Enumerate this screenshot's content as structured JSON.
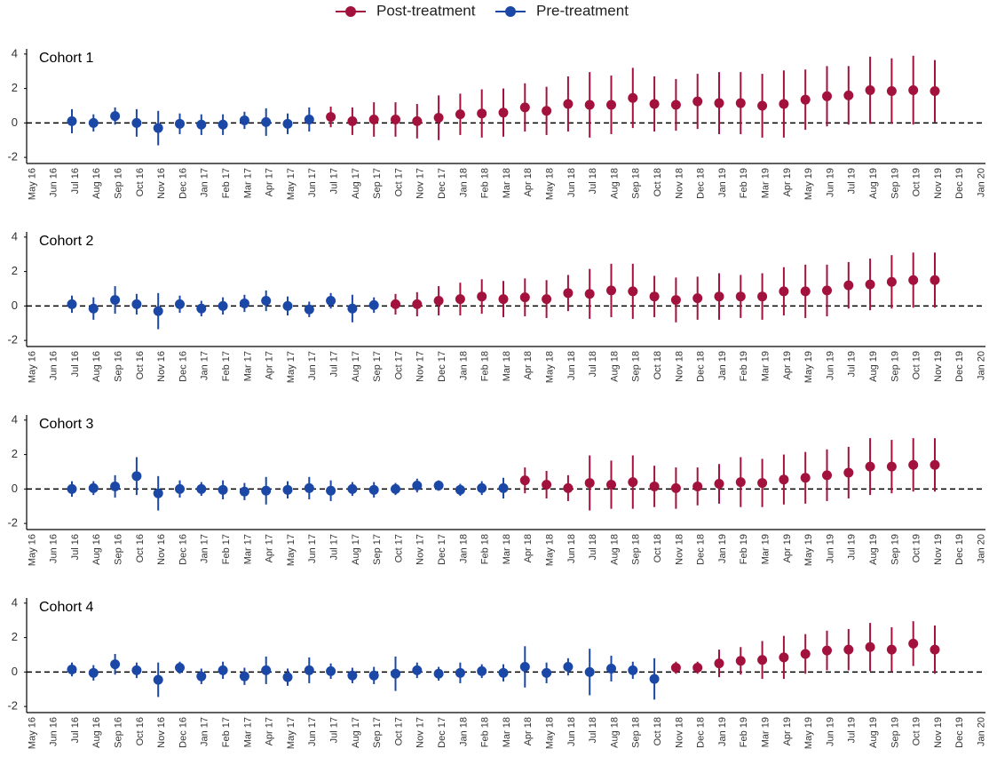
{
  "legend": [
    {
      "name": "Post-treatment",
      "color": "#a3123c"
    },
    {
      "name": "Pre-treatment",
      "color": "#1b48a6"
    }
  ],
  "chart_data": [
    {
      "type": "errorbar",
      "title": "Cohort 1",
      "categories": [
        "May 16",
        "Jun 16",
        "Jul 16",
        "Aug 16",
        "Sep 16",
        "Oct 16",
        "Nov 16",
        "Dec 16",
        "Jan 17",
        "Feb 17",
        "Mar 17",
        "Apr 17",
        "May 17",
        "Jun 17",
        "Jul 17",
        "Aug 17",
        "Sep 17",
        "Oct 17",
        "Nov 17",
        "Dec 17",
        "Jan 18",
        "Feb 18",
        "Mar 18",
        "Apr 18",
        "May 18",
        "Jun 18",
        "Jul 18",
        "Aug 18",
        "Sep 18",
        "Oct 18",
        "Nov 18",
        "Dec 18",
        "Jan 19",
        "Feb 19",
        "Mar 19",
        "Apr 19",
        "May 19",
        "Jun 19",
        "Jul 19",
        "Aug 19",
        "Sep 19",
        "Oct 19",
        "Nov 19",
        "Dec 19",
        "Jan 20"
      ],
      "ylim": [
        -2.2,
        4.3
      ],
      "yticks": [
        -2,
        0,
        2,
        4
      ],
      "reference_line": 0,
      "series": [
        {
          "values": [
            null,
            null,
            null,
            null,
            null,
            null,
            null,
            null,
            null,
            null,
            null,
            null,
            null,
            null,
            0.35,
            0.1,
            0.2,
            0.2,
            0.1,
            0.3,
            0.5,
            0.55,
            0.6,
            0.9,
            0.7,
            1.1,
            1.05,
            1.05,
            1.45,
            1.1,
            1.05,
            1.25,
            1.15,
            1.15,
            1.0,
            1.1,
            1.35,
            1.55,
            1.6,
            1.9,
            1.85,
            1.9,
            1.85,
            null,
            null
          ],
          "errors": [
            null,
            null,
            null,
            null,
            null,
            null,
            null,
            null,
            null,
            null,
            null,
            null,
            null,
            null,
            0.6,
            0.8,
            1.0,
            1.0,
            1.0,
            1.3,
            1.2,
            1.4,
            1.4,
            1.4,
            1.4,
            1.6,
            1.9,
            1.7,
            1.75,
            1.6,
            1.5,
            1.6,
            1.8,
            1.8,
            1.85,
            1.95,
            1.75,
            1.75,
            1.7,
            1.95,
            1.9,
            2.0,
            1.8,
            null,
            null
          ]
        },
        {
          "values": [
            null,
            null,
            0.1,
            0,
            0.4,
            0,
            -0.3,
            -0.05,
            -0.1,
            -0.1,
            0.15,
            0.05,
            -0.05,
            0.2,
            null,
            null,
            null,
            null,
            null,
            null,
            null,
            null,
            null,
            null,
            null,
            null,
            null,
            null,
            null,
            null,
            null,
            null,
            null,
            null,
            null,
            null,
            null,
            null,
            null,
            null,
            null,
            null,
            null,
            null,
            null
          ],
          "errors": [
            null,
            null,
            0.7,
            0.5,
            0.5,
            0.8,
            1.0,
            0.6,
            0.6,
            0.6,
            0.5,
            0.8,
            0.6,
            0.7,
            null,
            null,
            null,
            null,
            null,
            null,
            null,
            null,
            null,
            null,
            null,
            null,
            null,
            null,
            null,
            null,
            null,
            null,
            null,
            null,
            null,
            null,
            null,
            null,
            null,
            null,
            null,
            null,
            null,
            null,
            null
          ]
        }
      ]
    },
    {
      "type": "errorbar",
      "title": "Cohort 2",
      "categories": [
        "May 16",
        "Jun 16",
        "Jul 16",
        "Aug 16",
        "Sep 16",
        "Oct 16",
        "Nov 16",
        "Dec 16",
        "Jan 17",
        "Feb 17",
        "Mar 17",
        "Apr 17",
        "May 17",
        "Jun 17",
        "Jul 17",
        "Aug 17",
        "Sep 17",
        "Oct 17",
        "Nov 17",
        "Dec 17",
        "Jan 18",
        "Feb 18",
        "Mar 18",
        "Apr 18",
        "May 18",
        "Jun 18",
        "Jul 18",
        "Aug 18",
        "Sep 18",
        "Oct 18",
        "Nov 18",
        "Dec 18",
        "Jan 19",
        "Feb 19",
        "Mar 19",
        "Apr 19",
        "May 19",
        "Jun 19",
        "Jul 19",
        "Aug 19",
        "Sep 19",
        "Oct 19",
        "Nov 19",
        "Dec 19",
        "Jan 20"
      ],
      "ylim": [
        -2.2,
        4.3
      ],
      "yticks": [
        -2,
        0,
        2,
        4
      ],
      "reference_line": 0,
      "series": [
        {
          "values": [
            null,
            null,
            null,
            null,
            null,
            null,
            null,
            null,
            null,
            null,
            null,
            null,
            null,
            null,
            null,
            null,
            null,
            0.1,
            0.1,
            0.3,
            0.4,
            0.55,
            0.4,
            0.5,
            0.4,
            0.75,
            0.7,
            0.9,
            0.85,
            0.55,
            0.35,
            0.45,
            0.55,
            0.55,
            0.55,
            0.85,
            0.85,
            0.9,
            1.2,
            1.25,
            1.4,
            1.5,
            1.5,
            null,
            null
          ],
          "errors": [
            null,
            null,
            null,
            null,
            null,
            null,
            null,
            null,
            null,
            null,
            null,
            null,
            null,
            null,
            null,
            null,
            null,
            0.6,
            0.7,
            0.85,
            0.95,
            1.0,
            1.05,
            1.1,
            1.1,
            1.05,
            1.45,
            1.55,
            1.6,
            1.2,
            1.3,
            1.25,
            1.35,
            1.25,
            1.35,
            1.4,
            1.55,
            1.5,
            1.35,
            1.5,
            1.55,
            1.6,
            1.6,
            null,
            null
          ]
        },
        {
          "values": [
            null,
            null,
            0.1,
            -0.15,
            0.35,
            0.1,
            -0.3,
            0.1,
            -0.15,
            0,
            0.15,
            0.3,
            0,
            -0.2,
            0.3,
            -0.15,
            0.05,
            null,
            null,
            null,
            null,
            null,
            null,
            null,
            null,
            null,
            null,
            null,
            null,
            null,
            null,
            null,
            null,
            null,
            null,
            null,
            null,
            null,
            null,
            null,
            null,
            null,
            null,
            null,
            null
          ],
          "errors": [
            null,
            null,
            0.5,
            0.65,
            0.8,
            0.6,
            1.05,
            0.5,
            0.45,
            0.5,
            0.5,
            0.6,
            0.55,
            0.45,
            0.45,
            0.8,
            0.45,
            null,
            null,
            null,
            null,
            null,
            null,
            null,
            null,
            null,
            null,
            null,
            null,
            null,
            null,
            null,
            null,
            null,
            null,
            null,
            null,
            null,
            null,
            null,
            null,
            null,
            null,
            null,
            null
          ]
        }
      ]
    },
    {
      "type": "errorbar",
      "title": "Cohort 3",
      "categories": [
        "May 16",
        "Jun 16",
        "Jul 16",
        "Aug 16",
        "Sep 16",
        "Oct 16",
        "Nov 16",
        "Dec 16",
        "Jan 17",
        "Feb 17",
        "Mar 17",
        "Apr 17",
        "May 17",
        "Jun 17",
        "Jul 17",
        "Aug 17",
        "Sep 17",
        "Oct 17",
        "Nov 17",
        "Dec 17",
        "Jan 18",
        "Feb 18",
        "Mar 18",
        "Apr 18",
        "May 18",
        "Jun 18",
        "Jul 18",
        "Aug 18",
        "Sep 18",
        "Oct 18",
        "Nov 18",
        "Dec 18",
        "Jan 19",
        "Feb 19",
        "Mar 19",
        "Apr 19",
        "May 19",
        "Jun 19",
        "Jul 19",
        "Aug 19",
        "Sep 19",
        "Oct 19",
        "Nov 19",
        "Dec 19",
        "Jan 20"
      ],
      "ylim": [
        -2.2,
        4.3
      ],
      "yticks": [
        -2,
        0,
        2,
        4
      ],
      "reference_line": 0,
      "series": [
        {
          "values": [
            null,
            null,
            null,
            null,
            null,
            null,
            null,
            null,
            null,
            null,
            null,
            null,
            null,
            null,
            null,
            null,
            null,
            null,
            null,
            null,
            null,
            null,
            null,
            0.5,
            0.25,
            0.05,
            0.35,
            0.25,
            0.4,
            0.15,
            0.05,
            0.15,
            0.3,
            0.4,
            0.35,
            0.55,
            0.65,
            0.8,
            0.95,
            1.3,
            1.3,
            1.4,
            1.4,
            null,
            null
          ],
          "errors": [
            null,
            null,
            null,
            null,
            null,
            null,
            null,
            null,
            null,
            null,
            null,
            null,
            null,
            null,
            null,
            null,
            null,
            null,
            null,
            null,
            null,
            null,
            null,
            0.75,
            0.8,
            0.75,
            1.6,
            1.4,
            1.55,
            1.2,
            1.2,
            1.1,
            1.15,
            1.45,
            1.4,
            1.45,
            1.5,
            1.5,
            1.5,
            1.65,
            1.55,
            1.55,
            1.55,
            null,
            null
          ]
        },
        {
          "values": [
            null,
            null,
            0,
            0.05,
            0.15,
            0.75,
            -0.25,
            0,
            0,
            -0.05,
            -0.15,
            -0.1,
            -0.05,
            0.05,
            -0.1,
            0,
            -0.05,
            0,
            0.2,
            0.2,
            -0.05,
            0.05,
            0.05,
            null,
            null,
            null,
            null,
            null,
            null,
            null,
            null,
            null,
            null,
            null,
            null,
            null,
            null,
            null,
            null,
            null,
            null,
            null,
            null,
            null,
            null
          ],
          "errors": [
            null,
            null,
            0.45,
            0.4,
            0.65,
            1.1,
            1.0,
            0.5,
            0.4,
            0.55,
            0.5,
            0.8,
            0.5,
            0.65,
            0.6,
            0.4,
            0.45,
            0.35,
            0.4,
            0.3,
            0.35,
            0.4,
            0.6,
            null,
            null,
            null,
            null,
            null,
            null,
            null,
            null,
            null,
            null,
            null,
            null,
            null,
            null,
            null,
            null,
            null,
            null,
            null,
            null,
            null,
            null
          ]
        }
      ]
    },
    {
      "type": "errorbar",
      "title": "Cohort 4",
      "categories": [
        "May 16",
        "Jun 16",
        "Jul 16",
        "Aug 16",
        "Sep 16",
        "Oct 16",
        "Nov 16",
        "Dec 16",
        "Jan 17",
        "Feb 17",
        "Mar 17",
        "Apr 17",
        "May 17",
        "Jun 17",
        "Jul 17",
        "Aug 17",
        "Sep 17",
        "Oct 17",
        "Nov 17",
        "Dec 17",
        "Jan 18",
        "Feb 18",
        "Mar 18",
        "Apr 18",
        "May 18",
        "Jun 18",
        "Jul 18",
        "Aug 18",
        "Sep 18",
        "Oct 18",
        "Nov 18",
        "Dec 18",
        "Jan 19",
        "Feb 19",
        "Mar 19",
        "Apr 19",
        "May 19",
        "Jun 19",
        "Jul 19",
        "Aug 19",
        "Sep 19",
        "Oct 19",
        "Nov 19",
        "Dec 19",
        "Jan 20"
      ],
      "ylim": [
        -2.2,
        4.3
      ],
      "yticks": [
        -2,
        0,
        2,
        4
      ],
      "reference_line": 0,
      "series": [
        {
          "values": [
            null,
            null,
            null,
            null,
            null,
            null,
            null,
            null,
            null,
            null,
            null,
            null,
            null,
            null,
            null,
            null,
            null,
            null,
            null,
            null,
            null,
            null,
            null,
            null,
            null,
            null,
            null,
            null,
            null,
            null,
            0.25,
            0.25,
            0.5,
            0.65,
            0.7,
            0.85,
            1.05,
            1.25,
            1.3,
            1.45,
            1.3,
            1.65,
            1.3,
            null,
            null
          ],
          "errors": [
            null,
            null,
            null,
            null,
            null,
            null,
            null,
            null,
            null,
            null,
            null,
            null,
            null,
            null,
            null,
            null,
            null,
            null,
            null,
            null,
            null,
            null,
            null,
            null,
            null,
            null,
            null,
            null,
            null,
            null,
            0.35,
            0.35,
            0.8,
            0.8,
            1.1,
            1.25,
            1.15,
            1.15,
            1.2,
            1.4,
            1.3,
            1.3,
            1.4,
            null,
            null
          ]
        },
        {
          "values": [
            null,
            null,
            0.15,
            -0.05,
            0.45,
            0.1,
            -0.45,
            0.25,
            -0.25,
            0.1,
            -0.25,
            0.1,
            -0.3,
            0.1,
            0.05,
            -0.2,
            -0.2,
            -0.1,
            0.1,
            -0.1,
            -0.05,
            0.05,
            -0.05,
            0.3,
            -0.05,
            0.3,
            0,
            0.2,
            0.1,
            -0.4,
            null,
            null,
            null,
            null,
            null,
            null,
            null,
            null,
            null,
            null,
            null,
            null,
            null,
            null,
            null
          ],
          "errors": [
            null,
            null,
            0.4,
            0.45,
            0.6,
            0.45,
            1.0,
            0.35,
            0.45,
            0.5,
            0.5,
            0.8,
            0.5,
            0.75,
            0.45,
            0.45,
            0.5,
            1.0,
            0.45,
            0.4,
            0.6,
            0.4,
            0.5,
            1.2,
            0.6,
            0.5,
            1.35,
            0.75,
            0.5,
            1.2,
            null,
            null,
            null,
            null,
            null,
            null,
            null,
            null,
            null,
            null,
            null,
            null,
            null,
            null,
            null
          ]
        }
      ]
    }
  ]
}
